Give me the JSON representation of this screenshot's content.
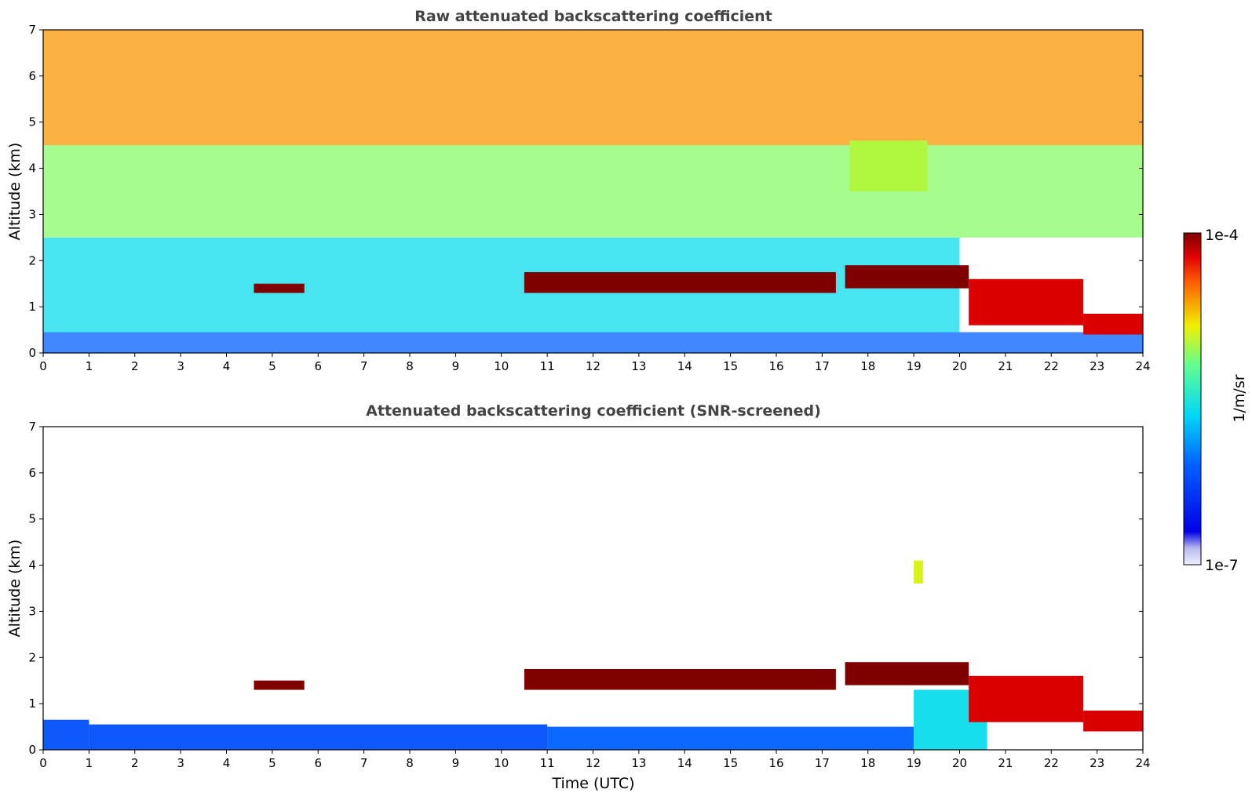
{
  "chart_data": [
    {
      "type": "heatmap",
      "title": "Raw attenuated backscattering coefficient",
      "xlabel": "",
      "ylabel": "Altitude (km)",
      "xlim": [
        0,
        24
      ],
      "ylim": [
        0,
        7
      ],
      "xticks": [
        "0",
        "1",
        "2",
        "3",
        "4",
        "5",
        "6",
        "7",
        "8",
        "9",
        "10",
        "11",
        "12",
        "13",
        "14",
        "15",
        "16",
        "17",
        "18",
        "19",
        "20",
        "21",
        "22",
        "23",
        "24"
      ],
      "yticks": [
        "0",
        "1",
        "2",
        "3",
        "4",
        "5",
        "6",
        "7"
      ],
      "grid": false,
      "layers": [
        {
          "x": [
            0,
            24
          ],
          "y": [
            0,
            0.45
          ],
          "log10_value": -6.1
        },
        {
          "x": [
            0,
            20
          ],
          "y": [
            0.45,
            2.5
          ],
          "log10_value": -5.6
        },
        {
          "x": [
            0,
            24
          ],
          "y": [
            2.5,
            4.5
          ],
          "log10_value": -5.1
        },
        {
          "x": [
            0,
            24
          ],
          "y": [
            4.5,
            7
          ],
          "log10_value": -4.6
        }
      ],
      "cloud_layers": [
        {
          "x": [
            4.6,
            5.7
          ],
          "y": [
            1.3,
            1.5
          ],
          "log10_value": -4.0
        },
        {
          "x": [
            10.5,
            17.3
          ],
          "y": [
            1.3,
            1.75
          ],
          "log10_value": -4.0
        },
        {
          "x": [
            17.5,
            20.2
          ],
          "y": [
            1.4,
            1.9
          ],
          "log10_value": -4.0
        },
        {
          "x": [
            20.2,
            22.7
          ],
          "y": [
            0.6,
            1.6
          ],
          "log10_value": -4.2
        },
        {
          "x": [
            22.7,
            24
          ],
          "y": [
            0.4,
            0.85
          ],
          "log10_value": -4.2
        },
        {
          "x": [
            17.6,
            19.3
          ],
          "y": [
            3.5,
            4.6
          ],
          "log10_value": -5.0
        }
      ]
    },
    {
      "type": "heatmap",
      "title": "Attenuated backscattering coefficient (SNR-screened)",
      "xlabel": "Time (UTC)",
      "ylabel": "Altitude (km)",
      "xlim": [
        0,
        24
      ],
      "ylim": [
        0,
        7
      ],
      "xticks": [
        "0",
        "1",
        "2",
        "3",
        "4",
        "5",
        "6",
        "7",
        "8",
        "9",
        "10",
        "11",
        "12",
        "13",
        "14",
        "15",
        "16",
        "17",
        "18",
        "19",
        "20",
        "21",
        "22",
        "23",
        "24"
      ],
      "yticks": [
        "0",
        "1",
        "2",
        "3",
        "4",
        "5",
        "6",
        "7"
      ],
      "grid": false,
      "layers": [
        {
          "x": [
            0,
            1
          ],
          "y": [
            0,
            0.65
          ],
          "log10_value": -6.2
        },
        {
          "x": [
            1,
            11
          ],
          "y": [
            0,
            0.55
          ],
          "log10_value": -6.2
        },
        {
          "x": [
            11,
            19
          ],
          "y": [
            0,
            0.5
          ],
          "log10_value": -6.1
        },
        {
          "x": [
            19,
            20.6
          ],
          "y": [
            0,
            1.3
          ],
          "log10_value": -5.6
        }
      ],
      "cloud_layers": [
        {
          "x": [
            4.6,
            5.7
          ],
          "y": [
            1.3,
            1.5
          ],
          "log10_value": -3.8
        },
        {
          "x": [
            10.5,
            17.3
          ],
          "y": [
            1.3,
            1.75
          ],
          "log10_value": -3.8
        },
        {
          "x": [
            17.5,
            20.2
          ],
          "y": [
            1.4,
            1.9
          ],
          "log10_value": -3.8
        },
        {
          "x": [
            20.2,
            22.7
          ],
          "y": [
            0.6,
            1.6
          ],
          "log10_value": -4.2
        },
        {
          "x": [
            22.7,
            24
          ],
          "y": [
            0.4,
            0.85
          ],
          "log10_value": -4.2
        },
        {
          "x": [
            19.0,
            19.2
          ],
          "y": [
            3.6,
            4.1
          ],
          "log10_value": -4.9
        }
      ]
    }
  ],
  "colorbar": {
    "max_label": "1e-4",
    "min_label": "1e-7",
    "label": "1/m/sr",
    "log10_range": [
      -7,
      -4
    ],
    "colormap": "jet"
  }
}
